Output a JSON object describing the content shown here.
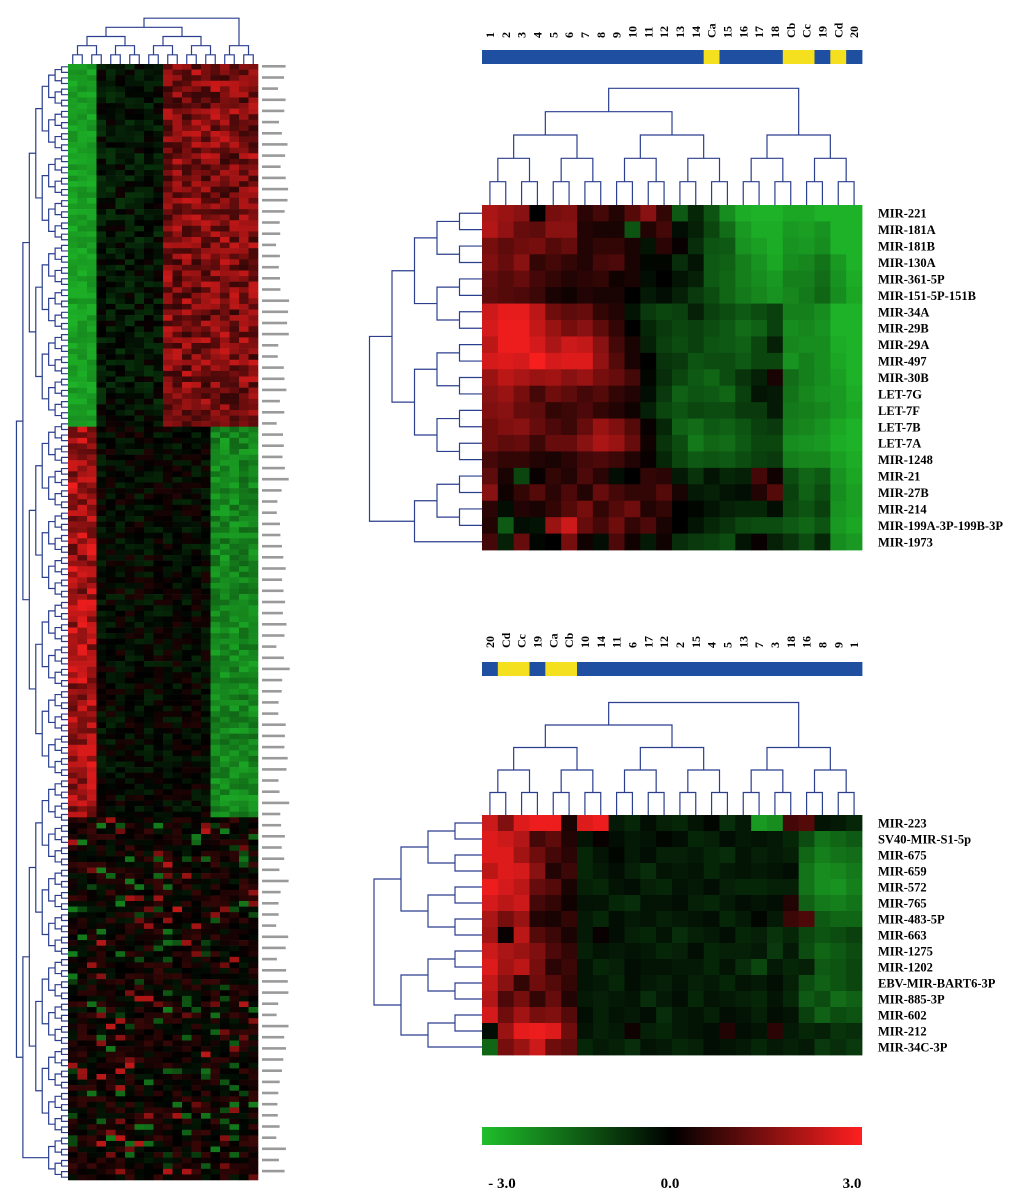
{
  "colors": {
    "low": "#1fbf2a",
    "mid": "#000000",
    "high": "#ff1f1f",
    "dendrogram": "#2b3f8f",
    "group_blue": "#1f4fa0",
    "group_yellow": "#f5e020"
  },
  "chart_data": [
    {
      "type": "heatmap",
      "name": "overview",
      "rows": 200,
      "cols": 20,
      "row_labels_legible": false,
      "description": ""
    },
    {
      "type": "heatmap",
      "name": "top",
      "columns": [
        "1",
        "2",
        "3",
        "4",
        "5",
        "6",
        "7",
        "8",
        "9",
        "10",
        "11",
        "12",
        "13",
        "14",
        "Ca",
        "15",
        "16",
        "17",
        "18",
        "Cb",
        "Cc",
        "19",
        "Cd",
        "20"
      ],
      "column_groups": [
        "blue",
        "blue",
        "blue",
        "blue",
        "blue",
        "blue",
        "blue",
        "blue",
        "blue",
        "blue",
        "blue",
        "blue",
        "blue",
        "blue",
        "yellow",
        "blue",
        "blue",
        "blue",
        "blue",
        "yellow",
        "yellow",
        "blue",
        "yellow",
        "blue"
      ],
      "rows": [
        "MIR-221",
        "MIR-181A",
        "MIR-181B",
        "MIR-130A",
        "MIR-361-5P",
        "MIR-151-5P-151B",
        "MIR-34A",
        "MIR-29B",
        "MIR-29A",
        "MIR-497",
        "MIR-30B",
        "LET-7G",
        "LET-7F",
        "LET-7B",
        "LET-7A",
        "MIR-1248",
        "MIR-21",
        "MIR-27B",
        "MIR-214",
        "MIR-199A-3P-199B-3P",
        "MIR-1973"
      ],
      "values": [
        [
          2.0,
          1.8,
          1.6,
          0.0,
          1.4,
          1.5,
          0.5,
          0.8,
          0.4,
          1.0,
          1.6,
          0.6,
          -1.4,
          -0.6,
          -1.3,
          -2.2,
          -2.7,
          -2.8,
          -2.8,
          -2.6,
          -2.6,
          -2.8,
          -2.8,
          -2.8
        ],
        [
          2.1,
          1.7,
          1.2,
          1.1,
          1.6,
          1.6,
          0.4,
          0.3,
          0.3,
          -1.3,
          0.4,
          0.8,
          -0.2,
          -0.5,
          -1.1,
          -1.7,
          -2.4,
          -2.7,
          -2.7,
          -2.4,
          -2.5,
          -2.3,
          -2.8,
          -2.8
        ],
        [
          1.4,
          1.1,
          1.3,
          1.4,
          1.0,
          1.2,
          0.4,
          0.6,
          0.6,
          0.3,
          -0.3,
          0.5,
          0.1,
          -0.7,
          -1.3,
          -1.4,
          -2.3,
          -2.5,
          -2.7,
          -2.3,
          -2.4,
          -2.2,
          -2.8,
          -2.8
        ],
        [
          1.5,
          1.2,
          1.6,
          0.6,
          0.8,
          0.6,
          0.4,
          0.8,
          0.9,
          0.3,
          -0.1,
          -0.1,
          -0.7,
          -0.3,
          -1.4,
          -1.5,
          -2.0,
          -2.3,
          -2.6,
          -2.2,
          -2.1,
          -1.8,
          -2.4,
          -2.8
        ],
        [
          1.2,
          1.0,
          1.2,
          0.8,
          0.6,
          0.4,
          0.5,
          0.6,
          0.2,
          0.3,
          -0.2,
          0.0,
          -0.3,
          -0.5,
          -1.4,
          -1.6,
          -2.0,
          -2.2,
          -2.4,
          -2.0,
          -2.0,
          -1.7,
          -2.3,
          -2.7
        ],
        [
          1.1,
          1.0,
          0.9,
          0.7,
          0.3,
          0.2,
          0.4,
          0.3,
          0.3,
          0.0,
          -0.4,
          -0.2,
          -0.5,
          -0.9,
          -1.2,
          -1.6,
          -1.9,
          -2.1,
          -2.3,
          -2.1,
          -1.9,
          -1.6,
          -2.2,
          -2.6
        ],
        [
          2.4,
          2.7,
          2.7,
          2.2,
          1.3,
          1.1,
          1.2,
          0.6,
          0.4,
          -0.3,
          -0.9,
          -1.1,
          -1.0,
          -0.5,
          -1.0,
          -1.2,
          -1.4,
          -1.2,
          -1.0,
          -2.0,
          -2.0,
          -2.2,
          -2.8,
          -2.8
        ],
        [
          2.5,
          2.8,
          2.8,
          2.3,
          1.8,
          1.4,
          1.6,
          1.1,
          0.6,
          0.0,
          -0.6,
          -0.9,
          -1.1,
          -1.0,
          -1.2,
          -1.4,
          -1.7,
          -1.5,
          -1.0,
          -2.2,
          -2.1,
          -2.3,
          -2.8,
          -2.8
        ],
        [
          2.2,
          2.8,
          2.8,
          2.5,
          2.0,
          2.4,
          2.3,
          1.6,
          0.8,
          0.3,
          -0.5,
          -1.0,
          -1.2,
          -1.0,
          -1.3,
          -1.4,
          -1.5,
          -1.1,
          -0.5,
          -2.1,
          -2.2,
          -2.2,
          -2.7,
          -2.8
        ],
        [
          2.5,
          2.6,
          2.5,
          2.9,
          2.5,
          2.6,
          2.6,
          1.7,
          1.0,
          0.3,
          0.0,
          -0.8,
          -0.9,
          -1.3,
          -1.2,
          -1.2,
          -1.4,
          -1.1,
          -1.1,
          -2.3,
          -2.0,
          -2.2,
          -2.6,
          -2.8
        ],
        [
          1.8,
          2.2,
          2.0,
          1.8,
          1.9,
          1.6,
          1.8,
          1.4,
          1.2,
          0.8,
          -0.1,
          -0.7,
          -1.1,
          -1.4,
          -1.6,
          -1.2,
          -0.8,
          -0.5,
          0.3,
          -1.7,
          -2.0,
          -2.2,
          -2.5,
          -2.8
        ],
        [
          1.6,
          1.8,
          1.4,
          0.8,
          1.3,
          1.1,
          0.8,
          1.0,
          0.6,
          0.4,
          -0.2,
          -0.9,
          -1.5,
          -1.3,
          -1.4,
          -1.6,
          -1.0,
          -0.3,
          -0.4,
          -1.8,
          -2.1,
          -2.3,
          -2.4,
          -2.7
        ],
        [
          1.5,
          1.6,
          1.2,
          1.1,
          0.6,
          0.7,
          0.9,
          0.6,
          0.4,
          0.2,
          -0.5,
          -1.1,
          -1.3,
          -1.1,
          -1.2,
          -1.2,
          -0.9,
          -0.9,
          -0.4,
          -1.9,
          -2.0,
          -2.1,
          -2.4,
          -2.6
        ],
        [
          1.3,
          1.5,
          1.6,
          1.2,
          0.9,
          0.7,
          1.2,
          1.8,
          1.5,
          1.0,
          0.1,
          -0.6,
          -1.5,
          -1.7,
          -1.4,
          -1.5,
          -1.3,
          -1.0,
          -0.9,
          -2.0,
          -2.1,
          -2.3,
          -2.6,
          -2.8
        ],
        [
          1.3,
          1.1,
          1.2,
          0.7,
          1.2,
          1.2,
          1.6,
          2.0,
          1.8,
          1.2,
          0.2,
          -0.8,
          -1.2,
          -1.9,
          -1.6,
          -1.7,
          -1.4,
          -1.1,
          -1.1,
          -2.2,
          -2.3,
          -2.4,
          -2.7,
          -2.8
        ],
        [
          0.8,
          0.6,
          0.6,
          0.4,
          0.3,
          0.5,
          0.8,
          0.9,
          0.7,
          0.4,
          0.1,
          -0.6,
          -1.1,
          -1.4,
          -1.3,
          -1.4,
          -1.2,
          -1.0,
          -0.9,
          -2.0,
          -2.1,
          -2.1,
          -2.5,
          -2.7
        ],
        [
          1.1,
          0.3,
          -1.1,
          0.1,
          0.6,
          0.4,
          0.9,
          0.5,
          -0.2,
          0.0,
          0.6,
          0.5,
          -0.4,
          -0.8,
          -0.3,
          -0.6,
          -0.5,
          0.8,
          0.2,
          -1.2,
          -1.6,
          -1.4,
          -2.3,
          -2.6
        ],
        [
          1.6,
          0.2,
          0.6,
          1.0,
          0.5,
          0.9,
          0.4,
          1.2,
          0.8,
          0.6,
          0.6,
          1.0,
          0.3,
          -0.4,
          -0.5,
          -0.3,
          -0.2,
          0.4,
          1.0,
          -1.0,
          -1.5,
          -1.2,
          -2.2,
          -2.5
        ],
        [
          0.5,
          -0.2,
          0.4,
          0.3,
          0.6,
          1.0,
          1.4,
          0.6,
          1.0,
          1.3,
          0.4,
          0.6,
          0.0,
          -0.1,
          -0.3,
          -0.5,
          -0.6,
          -0.6,
          -0.2,
          -1.1,
          -1.3,
          -1.0,
          -2.3,
          -2.5
        ],
        [
          0.4,
          -1.4,
          -0.2,
          -0.3,
          1.8,
          2.4,
          1.2,
          0.8,
          1.3,
          0.6,
          0.9,
          0.3,
          0.0,
          -0.3,
          -0.6,
          -0.8,
          -1.1,
          -1.2,
          -1.2,
          -1.4,
          -1.6,
          -1.3,
          -2.4,
          -2.6
        ],
        [
          0.8,
          -0.5,
          1.2,
          -0.1,
          0.0,
          1.4,
          0.2,
          -0.2,
          0.9,
          0.2,
          -0.4,
          0.2,
          -0.7,
          -0.9,
          -1.0,
          -1.2,
          -0.3,
          0.1,
          -0.5,
          -0.8,
          -1.2,
          -0.6,
          -2.2,
          -2.4
        ]
      ],
      "scale_min": -3.0,
      "scale_max": 3.0
    },
    {
      "type": "heatmap",
      "name": "bottom",
      "columns": [
        "20",
        "Cd",
        "Cc",
        "19",
        "Ca",
        "Cb",
        "10",
        "14",
        "11",
        "6",
        "17",
        "12",
        "2",
        "15",
        "4",
        "5",
        "13",
        "7",
        "3",
        "18",
        "16",
        "8",
        "9",
        "1"
      ],
      "column_groups": [
        "blue",
        "yellow",
        "yellow",
        "blue",
        "yellow",
        "yellow",
        "blue",
        "blue",
        "blue",
        "blue",
        "blue",
        "blue",
        "blue",
        "blue",
        "blue",
        "blue",
        "blue",
        "blue",
        "blue",
        "blue",
        "blue",
        "blue",
        "blue",
        "blue"
      ],
      "rows": [
        "MIR-223",
        "SV40-MIR-S1-5p",
        "MIR-675",
        "MIR-659",
        "MIR-572",
        "MIR-765",
        "MIR-483-5P",
        "MIR-663",
        "MIR-1275",
        "MIR-1202",
        "EBV-MIR-BART6-3P",
        "MIR-885-3P",
        "MIR-602",
        "MIR-212",
        "MIR-34C-3P"
      ],
      "values": [
        [
          2.4,
          1.5,
          2.6,
          2.8,
          2.8,
          0.3,
          2.6,
          2.8,
          -0.4,
          -0.6,
          -0.2,
          -0.5,
          -0.6,
          -0.3,
          -0.1,
          -0.7,
          -0.4,
          -2.4,
          -2.2,
          0.8,
          1.0,
          -0.3,
          -0.4,
          -0.6
        ],
        [
          2.6,
          2.4,
          2.1,
          0.8,
          1.1,
          0.4,
          -0.3,
          0.1,
          -0.2,
          -0.4,
          -0.3,
          -0.1,
          -0.2,
          -0.6,
          -0.5,
          -0.2,
          -0.4,
          -0.3,
          -0.4,
          -0.6,
          -1.2,
          -1.8,
          -1.6,
          -1.4
        ],
        [
          2.6,
          2.6,
          1.9,
          1.3,
          0.8,
          0.5,
          -0.6,
          -0.3,
          -0.1,
          -0.4,
          -0.2,
          -0.5,
          -0.5,
          -0.4,
          -0.6,
          -0.7,
          -0.3,
          -0.5,
          -0.4,
          -0.5,
          -1.6,
          -2.0,
          -1.8,
          -1.7
        ],
        [
          2.2,
          2.6,
          2.5,
          1.6,
          0.4,
          0.7,
          -0.6,
          -0.4,
          -0.2,
          -0.5,
          -0.7,
          -0.3,
          -0.4,
          -0.3,
          -0.6,
          -0.4,
          -0.3,
          -0.4,
          -0.3,
          -0.2,
          -1.8,
          -2.2,
          -2.1,
          -1.9
        ],
        [
          2.8,
          2.5,
          2.2,
          1.2,
          1.0,
          0.3,
          -0.5,
          -0.6,
          -0.3,
          -0.2,
          -0.5,
          -0.6,
          -0.3,
          -0.4,
          -0.2,
          -0.5,
          -0.6,
          -0.6,
          -0.5,
          -0.5,
          -1.8,
          -2.2,
          -2.3,
          -2.0
        ],
        [
          2.5,
          2.2,
          2.4,
          0.8,
          0.6,
          0.2,
          -0.3,
          -0.3,
          -0.6,
          -0.7,
          -0.3,
          -0.3,
          -0.2,
          -0.5,
          -0.6,
          -0.4,
          -0.2,
          -0.3,
          -0.2,
          0.4,
          -1.5,
          -1.9,
          -2.0,
          -1.8
        ],
        [
          2.0,
          1.4,
          1.8,
          0.4,
          0.3,
          0.6,
          -0.4,
          -0.6,
          -0.2,
          -0.4,
          -0.3,
          -0.5,
          -0.4,
          -0.3,
          -0.2,
          -0.6,
          -0.4,
          -0.1,
          -0.4,
          0.7,
          0.9,
          -1.4,
          -1.6,
          -1.6
        ],
        [
          1.9,
          0.1,
          2.2,
          1.0,
          0.7,
          0.3,
          -0.4,
          0.1,
          -0.2,
          -0.5,
          -0.6,
          -0.3,
          -0.7,
          -0.5,
          -0.4,
          -0.2,
          -0.6,
          -0.5,
          -0.8,
          -0.6,
          -1.1,
          -1.3,
          -1.2,
          -1.0
        ],
        [
          2.4,
          2.0,
          1.8,
          1.5,
          0.9,
          0.6,
          -0.5,
          -0.3,
          -0.4,
          -0.3,
          -0.4,
          -0.6,
          -0.5,
          -0.2,
          -0.6,
          -0.5,
          -0.5,
          -0.4,
          -0.9,
          -0.4,
          -1.2,
          -1.6,
          -1.4,
          -1.2
        ],
        [
          2.6,
          1.9,
          2.2,
          1.4,
          0.5,
          0.7,
          -0.3,
          -0.6,
          -0.5,
          -0.2,
          -0.3,
          -0.3,
          -0.4,
          -0.4,
          -0.6,
          -0.3,
          -0.7,
          -1.1,
          -0.4,
          -0.6,
          -0.5,
          -1.4,
          -1.3,
          -1.1
        ],
        [
          2.3,
          1.6,
          0.6,
          1.3,
          1.0,
          0.6,
          -0.3,
          -0.4,
          -0.6,
          -0.2,
          -0.4,
          -0.5,
          -0.3,
          -0.5,
          -0.4,
          -0.6,
          -0.3,
          -0.4,
          -0.2,
          -0.5,
          -1.2,
          -1.5,
          -1.3,
          -1.1
        ],
        [
          2.1,
          0.9,
          1.4,
          0.6,
          1.2,
          0.4,
          -0.4,
          -0.5,
          -0.4,
          -0.3,
          -0.7,
          -0.4,
          -0.2,
          -0.6,
          -0.3,
          -0.4,
          -0.5,
          -0.6,
          -0.3,
          -0.6,
          -1.4,
          -1.2,
          -1.7,
          -1.5
        ],
        [
          2.5,
          1.3,
          1.9,
          1.4,
          1.5,
          1.0,
          -0.2,
          -0.5,
          -0.3,
          -0.4,
          -0.2,
          -0.7,
          -0.4,
          -0.3,
          -0.5,
          -0.2,
          -0.3,
          -0.5,
          -0.2,
          -0.3,
          -1.0,
          -1.5,
          -1.2,
          -1.3
        ],
        [
          -0.2,
          1.8,
          2.7,
          2.8,
          2.6,
          1.3,
          -0.3,
          -0.5,
          -0.4,
          0.2,
          -0.5,
          -0.6,
          -0.4,
          -0.3,
          -0.2,
          0.4,
          -0.2,
          -0.3,
          0.5,
          -0.4,
          -0.6,
          -0.5,
          -0.8,
          -0.7
        ],
        [
          -1.6,
          1.4,
          1.8,
          2.4,
          1.3,
          1.1,
          -0.6,
          -0.4,
          -0.5,
          -0.7,
          -0.3,
          -0.4,
          -0.6,
          -0.5,
          -0.2,
          -0.3,
          -0.4,
          -0.6,
          -0.4,
          -0.5,
          -0.4,
          -0.9,
          -0.7,
          -0.9
        ]
      ],
      "scale_min": -3.0,
      "scale_max": 3.0
    }
  ],
  "legend": {
    "min_label": "- 3.0",
    "mid_label": "0.0",
    "max_label": "3.0"
  }
}
